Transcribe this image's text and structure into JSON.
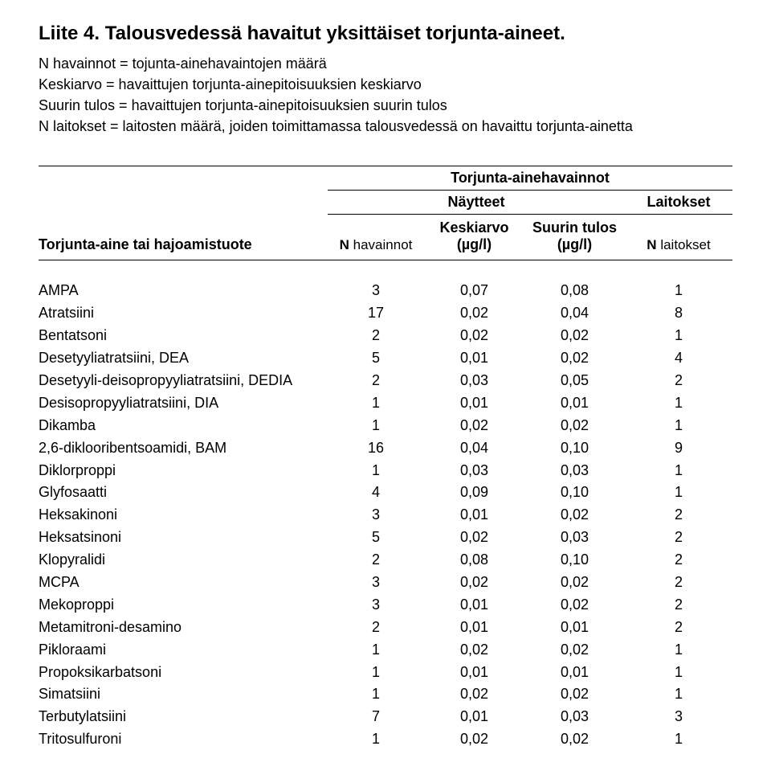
{
  "title": "Liite 4. Talousvedessä havaitut yksittäiset torjunta-aineet.",
  "definitions": [
    "N havainnot = tojunta-ainehavaintojen määrä",
    "Keskiarvo = havaittujen torjunta-ainepitoisuuksien keskiarvo",
    "Suurin tulos = havaittujen torjunta-ainepitoisuuksien suurin tulos",
    "N laitokset = laitosten määrä, joiden toimittamassa talousvedessä on havaittu torjunta-ainetta"
  ],
  "header": {
    "product": "Torjunta-aine tai hajoamistuote",
    "observations_group": "Torjunta-ainehavainnot",
    "samples_group": "Näytteet",
    "facilities_group": "Laitokset",
    "n_obs_prefix": "N",
    "n_obs_suffix": "havainnot",
    "avg_label": "Keskiarvo",
    "max_label": "Suurin tulos",
    "unit": "(µg/l)",
    "n_fac_prefix": "N",
    "n_fac_suffix": "laitokset"
  },
  "rows": [
    {
      "name": "AMPA",
      "n": "3",
      "avg": "0,07",
      "max": "0,08",
      "fac": "1"
    },
    {
      "name": "Atratsiini",
      "n": "17",
      "avg": "0,02",
      "max": "0,04",
      "fac": "8"
    },
    {
      "name": "Bentatsoni",
      "n": "2",
      "avg": "0,02",
      "max": "0,02",
      "fac": "1"
    },
    {
      "name": "Desetyyliatratsiini, DEA",
      "n": "5",
      "avg": "0,01",
      "max": "0,02",
      "fac": "4"
    },
    {
      "name": "Desetyyli-deisopropyyliatratsiini, DEDIA",
      "n": "2",
      "avg": "0,03",
      "max": "0,05",
      "fac": "2"
    },
    {
      "name": "Desisopropyyliatratsiini, DIA",
      "n": "1",
      "avg": "0,01",
      "max": "0,01",
      "fac": "1"
    },
    {
      "name": "Dikamba",
      "n": "1",
      "avg": "0,02",
      "max": "0,02",
      "fac": "1"
    },
    {
      "name": "2,6-diklooribentsoamidi, BAM",
      "n": "16",
      "avg": "0,04",
      "max": "0,10",
      "fac": "9"
    },
    {
      "name": "Diklorproppi",
      "n": "1",
      "avg": "0,03",
      "max": "0,03",
      "fac": "1"
    },
    {
      "name": "Glyfosaatti",
      "n": "4",
      "avg": "0,09",
      "max": "0,10",
      "fac": "1"
    },
    {
      "name": "Heksakinoni",
      "n": "3",
      "avg": "0,01",
      "max": "0,02",
      "fac": "2"
    },
    {
      "name": "Heksatsinoni",
      "n": "5",
      "avg": "0,02",
      "max": "0,03",
      "fac": "2"
    },
    {
      "name": "Klopyralidi",
      "n": "2",
      "avg": "0,08",
      "max": "0,10",
      "fac": "2"
    },
    {
      "name": "MCPA",
      "n": "3",
      "avg": "0,02",
      "max": "0,02",
      "fac": "2"
    },
    {
      "name": "Mekoproppi",
      "n": "3",
      "avg": "0,01",
      "max": "0,02",
      "fac": "2"
    },
    {
      "name": "Metamitroni-desamino",
      "n": "2",
      "avg": "0,01",
      "max": "0,01",
      "fac": "2"
    },
    {
      "name": "Pikloraami",
      "n": "1",
      "avg": "0,02",
      "max": "0,02",
      "fac": "1"
    },
    {
      "name": "Propoksikarbatsoni",
      "n": "1",
      "avg": "0,01",
      "max": "0,01",
      "fac": "1"
    },
    {
      "name": "Simatsiini",
      "n": "1",
      "avg": "0,02",
      "max": "0,02",
      "fac": "1"
    },
    {
      "name": "Terbutylatsiini",
      "n": "7",
      "avg": "0,01",
      "max": "0,03",
      "fac": "3"
    },
    {
      "name": "Tritosulfuroni",
      "n": "1",
      "avg": "0,02",
      "max": "0,02",
      "fac": "1"
    }
  ]
}
